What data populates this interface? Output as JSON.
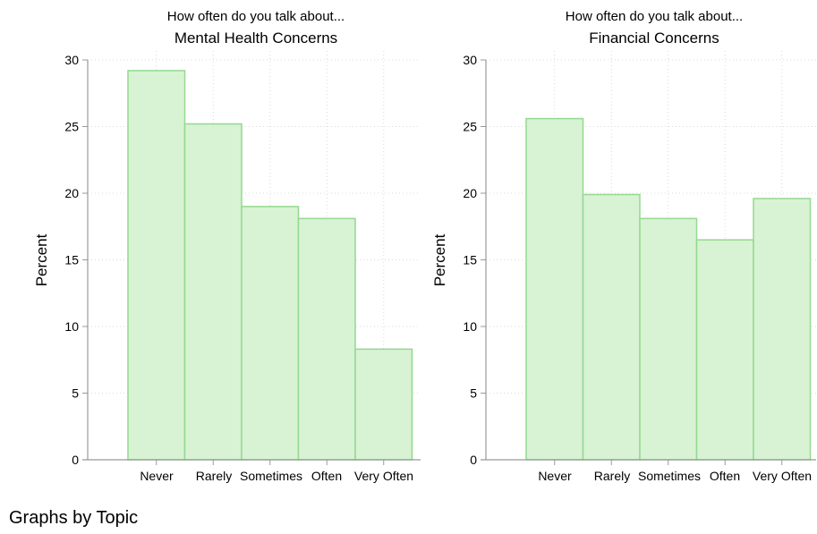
{
  "footer_note": "Graphs by Topic",
  "chart_data": [
    {
      "type": "bar",
      "subtitle": "How often do you talk about...",
      "title": "Mental Health Concerns",
      "ylabel": "Percent",
      "xlabel": "",
      "categories": [
        "Never",
        "Rarely",
        "Sometimes",
        "Often",
        "Very Often"
      ],
      "values": [
        29.2,
        25.2,
        19.0,
        18.1,
        8.3
      ],
      "ylim": [
        0,
        30
      ],
      "yticks": [
        0,
        5,
        10,
        15,
        20,
        25,
        30
      ],
      "grid": true,
      "bar_fill": "#d8f2d4",
      "bar_stroke": "#94d98f"
    },
    {
      "type": "bar",
      "subtitle": "How often do you talk about...",
      "title": "Financial Concerns",
      "ylabel": "Percent",
      "xlabel": "",
      "categories": [
        "Never",
        "Rarely",
        "Sometimes",
        "Often",
        "Very Often"
      ],
      "values": [
        25.6,
        19.9,
        18.1,
        16.5,
        19.6
      ],
      "ylim": [
        0,
        30
      ],
      "yticks": [
        0,
        5,
        10,
        15,
        20,
        25,
        30
      ],
      "grid": true,
      "bar_fill": "#d8f2d4",
      "bar_stroke": "#94d98f"
    }
  ]
}
